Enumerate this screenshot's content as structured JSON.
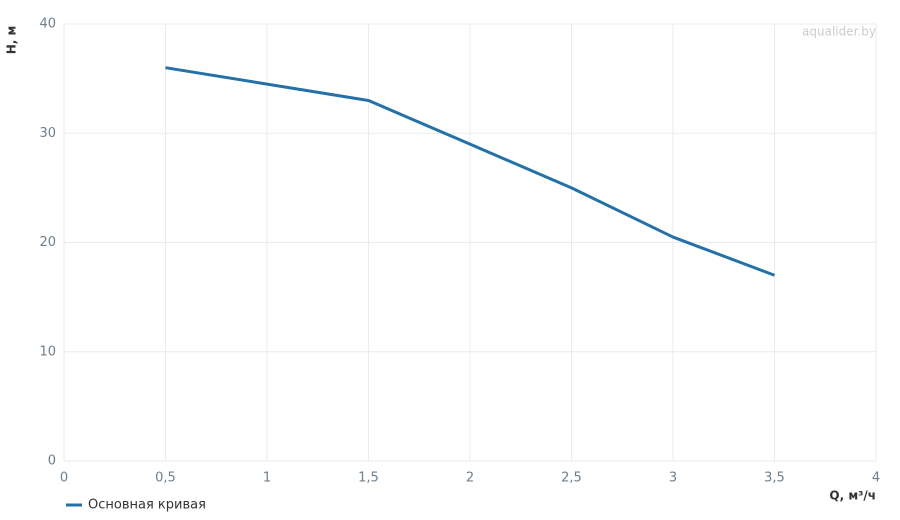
{
  "chart_data": {
    "type": "line",
    "x": [
      0.5,
      1,
      1.5,
      2,
      2.5,
      3,
      3.5
    ],
    "series": [
      {
        "name": "Основная кривая",
        "color": "#2471a8",
        "values": [
          36,
          34.5,
          33,
          29,
          25,
          20.5,
          17
        ]
      }
    ],
    "xlim": [
      0,
      4
    ],
    "xticks": [
      0,
      {
        "value": 0.5,
        "label": "0,5"
      },
      1,
      {
        "value": 1.5,
        "label": "1,5"
      },
      2,
      {
        "value": 2.5,
        "label": "2,5"
      },
      3,
      {
        "value": 3.5,
        "label": "3,5"
      },
      4
    ],
    "ylim": [
      0,
      40
    ],
    "yticks": [
      0,
      10,
      20,
      30,
      40
    ],
    "xlabel": "Q, м³/ч",
    "ylabel": "H, м",
    "annotation": "aqualider.by",
    "grid": true,
    "legend": "bottom-left"
  }
}
